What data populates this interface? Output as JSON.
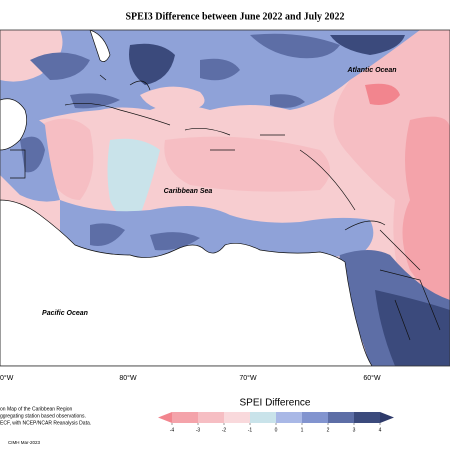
{
  "title": "SPEI3 Difference between June 2022 and July 2022",
  "map": {
    "labels": [
      "Atlantic Ocean",
      "Caribbean Sea",
      "Pacific Ocean"
    ],
    "longitudes": [
      "0°W",
      "80°W",
      "70°W",
      "60°W"
    ]
  },
  "colorbar": {
    "title": "SPEI Difference",
    "ticks": [
      -4,
      -3,
      -2,
      -1,
      0,
      1,
      2,
      3,
      4
    ],
    "colors": [
      "#f2858e",
      "#f4a3aa",
      "#f6bec3",
      "#f9d9dc",
      "#c9e3ea",
      "#a9b8e6",
      "#8294cf",
      "#5d6ea6",
      "#3b4a7c",
      "#2e3a6a"
    ]
  },
  "notes": [
    "on Map of the Caribbean Region",
    "ggregating station based observations.",
    "ECF, with NCEP/NCAR Reanalysis Data."
  ],
  "credit": "CIMH Mar-2023"
}
